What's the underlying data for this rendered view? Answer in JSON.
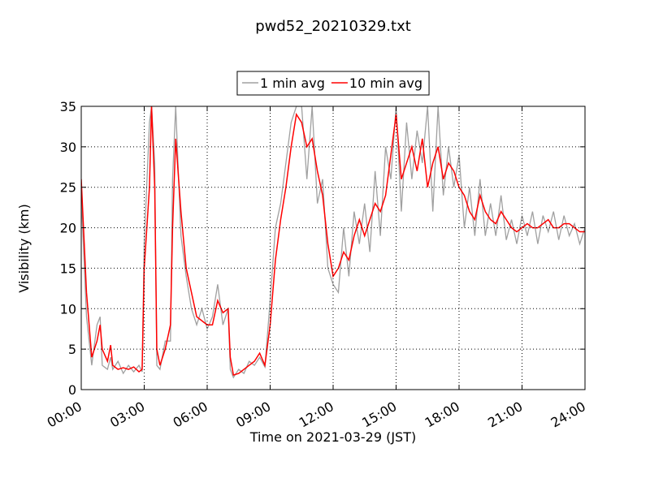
{
  "chart_data": {
    "type": "line",
    "title": "pwd52_20210329.txt",
    "x_label": "Time on 2021-03-29 (JST)",
    "y_label": "Visibility (km)",
    "x": [
      0,
      0.25,
      0.5,
      0.75,
      0.9,
      1,
      1.25,
      1.4,
      1.5,
      1.75,
      2,
      2.25,
      2.5,
      2.75,
      2.9,
      3,
      3.25,
      3.35,
      3.5,
      3.6,
      3.75,
      4,
      4.25,
      4.35,
      4.5,
      4.75,
      5,
      5.25,
      5.5,
      5.75,
      6,
      6.25,
      6.5,
      6.75,
      7,
      7.1,
      7.25,
      7.5,
      7.75,
      8,
      8.25,
      8.5,
      8.75,
      9,
      9.25,
      9.5,
      9.75,
      10,
      10.25,
      10.5,
      10.75,
      11,
      11.25,
      11.5,
      11.75,
      12,
      12.25,
      12.5,
      12.75,
      13,
      13.25,
      13.5,
      13.75,
      14,
      14.25,
      14.5,
      14.75,
      15,
      15.25,
      15.5,
      15.75,
      16,
      16.25,
      16.5,
      16.75,
      17,
      17.25,
      17.5,
      17.75,
      18,
      18.25,
      18.5,
      18.75,
      19,
      19.25,
      19.5,
      19.75,
      20,
      20.25,
      20.5,
      20.75,
      21,
      21.25,
      21.5,
      21.75,
      22,
      22.25,
      22.5,
      22.75,
      23,
      23.25,
      23.5,
      23.75,
      24
    ],
    "series": [
      {
        "name": "1 min avg",
        "color": "#a0a0a0",
        "values": [
          24,
          9,
          3,
          8,
          9,
          3,
          2.5,
          4,
          2.5,
          3.5,
          2,
          3,
          2.2,
          3,
          2.2,
          18,
          33,
          35,
          28,
          3,
          2.5,
          6,
          6,
          26,
          35,
          19,
          14,
          10,
          8,
          10,
          7.5,
          9,
          13,
          8,
          10,
          2.5,
          1.5,
          2.5,
          2,
          3.5,
          3,
          4,
          2.8,
          11,
          20,
          23,
          28,
          33,
          35,
          35,
          26,
          35,
          23,
          26,
          15,
          13,
          12,
          20,
          14,
          22,
          18,
          23,
          17,
          27,
          19,
          30,
          26,
          35,
          22,
          33,
          26,
          32,
          28,
          35,
          22,
          35,
          24,
          30,
          25,
          29,
          20,
          25,
          19,
          26,
          19,
          23,
          19,
          24,
          18.5,
          21,
          18,
          21.5,
          19,
          22,
          18,
          21.5,
          19.5,
          22,
          18.5,
          21.5,
          19,
          20.5,
          18,
          20
        ]
      },
      {
        "name": "10 min avg",
        "color": "#ff0000",
        "values": [
          26,
          12,
          4,
          6,
          8,
          5,
          3.5,
          5.5,
          3,
          2.5,
          2.7,
          2.5,
          2.8,
          2.2,
          2.5,
          15,
          25,
          35,
          25,
          5,
          3,
          5,
          8,
          20,
          31,
          22,
          15,
          12,
          9,
          8.5,
          8,
          8,
          11,
          9.5,
          10,
          4,
          1.8,
          2,
          2.5,
          3,
          3.5,
          4.5,
          3,
          8,
          16,
          21,
          25,
          30,
          34,
          33,
          30,
          31,
          27,
          24,
          18,
          14,
          15,
          17,
          16,
          19,
          21,
          19,
          21,
          23,
          22,
          24,
          29,
          34,
          26,
          28,
          30,
          27,
          31,
          25,
          28,
          30,
          26,
          28,
          27,
          25,
          24,
          22,
          21,
          24,
          22,
          21,
          20.5,
          22,
          21,
          20,
          19.5,
          20,
          20.5,
          20,
          20,
          20.5,
          21,
          20,
          20,
          20.5,
          20.5,
          20,
          19.5,
          19.5
        ]
      }
    ],
    "xlim": [
      0,
      24
    ],
    "xticks": [
      {
        "value": 0,
        "label": "00:00"
      },
      {
        "value": 3,
        "label": "03:00"
      },
      {
        "value": 6,
        "label": "06:00"
      },
      {
        "value": 9,
        "label": "09:00"
      },
      {
        "value": 12,
        "label": "12:00"
      },
      {
        "value": 15,
        "label": "15:00"
      },
      {
        "value": 18,
        "label": "18:00"
      },
      {
        "value": 21,
        "label": "21:00"
      },
      {
        "value": 24,
        "label": "24:00"
      }
    ],
    "ylim": [
      0,
      35
    ],
    "yticks": [
      0,
      5,
      10,
      15,
      20,
      25,
      30,
      35
    ],
    "grid": true,
    "legend": "upper center"
  }
}
